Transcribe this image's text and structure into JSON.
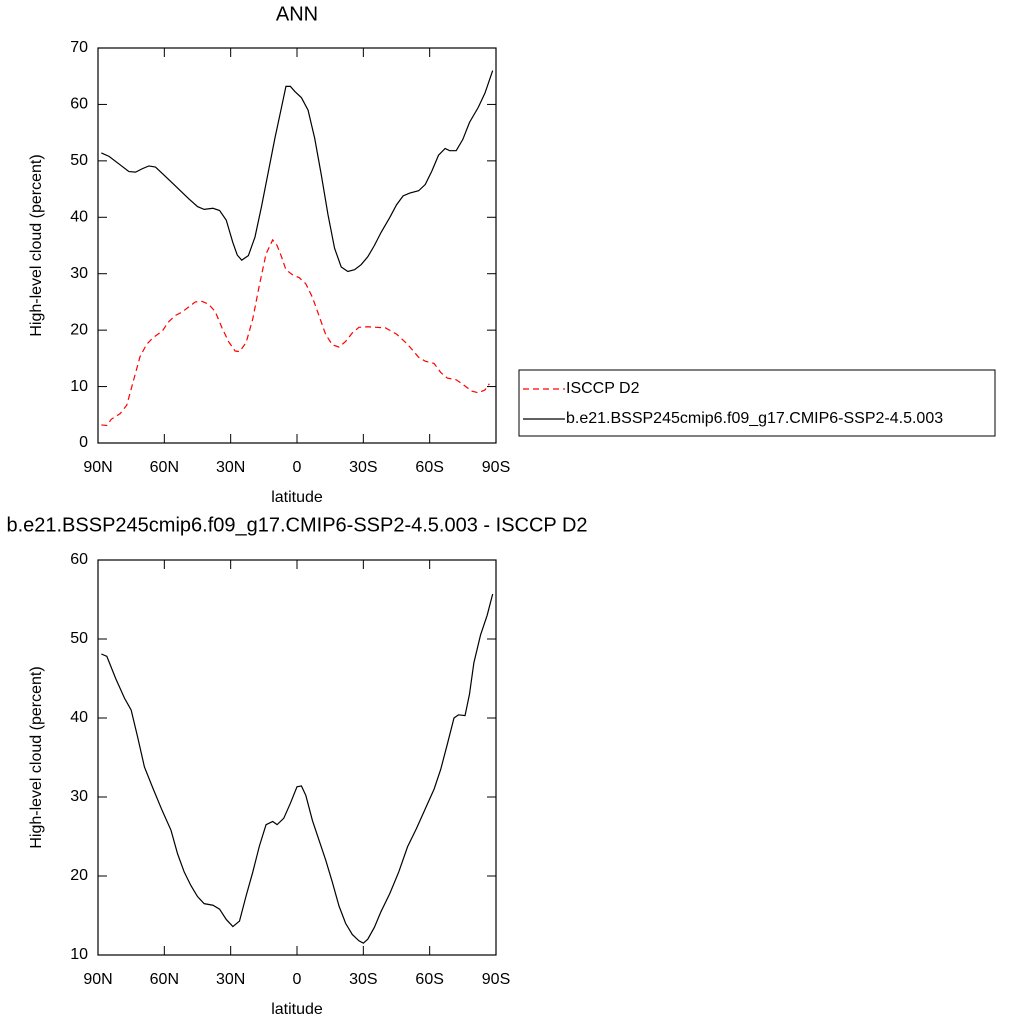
{
  "chart_data": [
    {
      "type": "line",
      "title": "ANN",
      "x_label": "latitude",
      "y_label": "High-level cloud (percent)",
      "xlim": [
        90,
        -90
      ],
      "xticks": [
        {
          "value": 90,
          "label": "90N"
        },
        {
          "value": 60,
          "label": "60N"
        },
        {
          "value": 30,
          "label": "30N"
        },
        0,
        {
          "value": -30,
          "label": "30S"
        },
        {
          "value": -60,
          "label": "60S"
        },
        {
          "value": -90,
          "label": "90S"
        }
      ],
      "ylim": [
        0,
        70
      ],
      "yticks": [
        0,
        10,
        20,
        30,
        40,
        50,
        60,
        70
      ],
      "legend": "right",
      "series": [
        {
          "name": "ISCCP D2",
          "color": "#ff0000",
          "dashed": true,
          "x": [
            88.5,
            86,
            84,
            80,
            77,
            74,
            71,
            68,
            65,
            61,
            58,
            55,
            52,
            49,
            46,
            43,
            40,
            37,
            34,
            31,
            28,
            26,
            23,
            20,
            17,
            14,
            11,
            9,
            7,
            5,
            2,
            -1,
            -4,
            -7,
            -10,
            -13,
            -16,
            -19,
            -22,
            -25,
            -28,
            -32,
            -36,
            -40,
            -45,
            -50,
            -55,
            -58,
            -62,
            -65,
            -68,
            -72,
            -75,
            -79,
            -82,
            -85,
            -87
          ],
          "values": [
            3.2,
            3.1,
            4.2,
            5.2,
            6.7,
            11,
            15.3,
            17.5,
            18.7,
            19.8,
            21.5,
            22.6,
            23.2,
            24.1,
            25,
            25.1,
            24.6,
            23.3,
            20.5,
            18,
            16.3,
            16.2,
            17.8,
            22,
            28,
            33.5,
            36,
            35,
            33,
            30.7,
            29.8,
            29.3,
            28.2,
            25.8,
            22.5,
            19.2,
            17.4,
            17,
            18,
            19.5,
            20.5,
            20.6,
            20.5,
            20.4,
            19.3,
            17.5,
            15.2,
            14.5,
            14.1,
            12.5,
            11.5,
            11.2,
            10.4,
            9.2,
            8.9,
            9.4,
            10.5
          ]
        },
        {
          "name": "b.e21.BSSP245cmip6.f09_g17.CMIP6-SSP2-4.5.003",
          "color": "#000000",
          "dashed": false,
          "x": [
            88.5,
            85,
            80,
            76,
            73,
            70,
            67,
            64,
            61,
            57,
            53,
            49,
            45,
            42,
            38,
            35,
            32,
            29,
            27,
            25,
            22,
            19,
            16,
            13,
            10,
            7,
            5,
            3,
            1,
            -2,
            -5,
            -8,
            -11,
            -14,
            -17,
            -20,
            -23,
            -26,
            -29,
            -32,
            -35,
            -38,
            -42,
            -45,
            -48,
            -51,
            -55,
            -58,
            -61,
            -64,
            -67,
            -69,
            -72,
            -75,
            -78,
            -82,
            -85,
            -88.5
          ],
          "values": [
            51.4,
            50.8,
            49.3,
            48.1,
            48,
            48.6,
            49.1,
            48.9,
            47.8,
            46.3,
            44.8,
            43.3,
            41.9,
            41.4,
            41.6,
            41.2,
            39.5,
            35.5,
            33.3,
            32.4,
            33.2,
            36.5,
            42,
            48,
            54,
            59.5,
            63.2,
            63.2,
            62.3,
            61.2,
            59,
            54,
            47.5,
            40.5,
            34.5,
            31.2,
            30.4,
            30.7,
            31.6,
            33,
            35,
            37.3,
            40,
            42.2,
            43.8,
            44.3,
            44.7,
            45.8,
            48.2,
            51,
            52.2,
            51.8,
            51.8,
            53.8,
            56.8,
            59.5,
            62,
            66
          ]
        }
      ]
    },
    {
      "type": "line",
      "title": "b.e21.BSSP245cmip6.f09_g17.CMIP6-SSP2-4.5.003 - ISCCP D2",
      "x_label": "latitude",
      "y_label": "High-level cloud (percent)",
      "xlim": [
        90,
        -90
      ],
      "xticks": [
        {
          "value": 90,
          "label": "90N"
        },
        {
          "value": 60,
          "label": "60N"
        },
        {
          "value": 30,
          "label": "30N"
        },
        0,
        {
          "value": -30,
          "label": "30S"
        },
        {
          "value": -60,
          "label": "60S"
        },
        {
          "value": -90,
          "label": "90S"
        }
      ],
      "ylim": [
        10,
        60
      ],
      "yticks": [
        10,
        20,
        30,
        40,
        50,
        60
      ],
      "series": [
        {
          "color": "#000000",
          "dashed": false,
          "x": [
            88.5,
            86,
            82,
            78,
            75,
            72,
            69,
            65,
            61,
            57,
            54,
            51,
            48,
            45,
            42,
            38,
            35,
            32,
            29,
            26,
            23,
            20,
            17,
            14,
            11,
            9,
            6,
            3,
            0,
            -2,
            -4,
            -7,
            -10,
            -13,
            -16,
            -19,
            -22,
            -25,
            -28,
            -30,
            -32,
            -35,
            -38,
            -42,
            -46,
            -50,
            -54,
            -58,
            -62,
            -65,
            -68,
            -71,
            -73,
            -76,
            -78,
            -80,
            -83,
            -86,
            -88.5
          ],
          "values": [
            48.1,
            47.8,
            45,
            42.5,
            41,
            37.5,
            33.8,
            31,
            28.3,
            25.8,
            22.8,
            20.5,
            18.8,
            17.4,
            16.5,
            16.3,
            15.8,
            14.5,
            13.6,
            14.3,
            17.5,
            20.5,
            23.8,
            26.5,
            26.9,
            26.5,
            27.3,
            29.2,
            31.3,
            31.4,
            30.2,
            27,
            24.5,
            22,
            19.2,
            16.2,
            14,
            12.6,
            11.8,
            11.5,
            12,
            13.5,
            15.5,
            17.8,
            20.5,
            23.7,
            26,
            28.5,
            31,
            33.5,
            36.7,
            40,
            40.4,
            40.3,
            43,
            47,
            50.5,
            53,
            55.7
          ]
        }
      ]
    }
  ]
}
